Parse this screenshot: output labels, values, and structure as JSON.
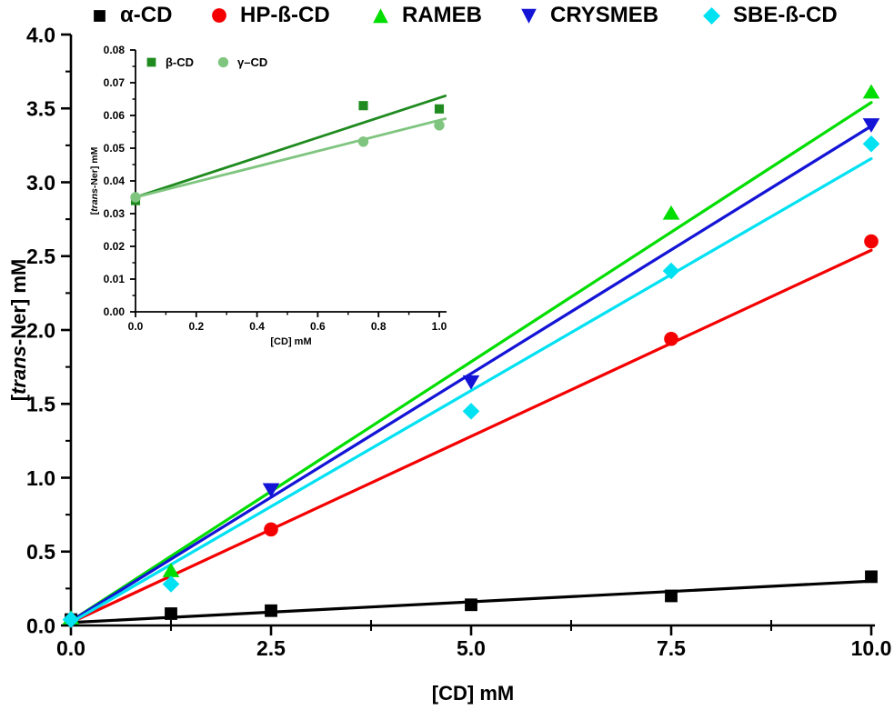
{
  "figure": {
    "background": "#ffffff",
    "axis_color": "#000000",
    "text_color": "#000000"
  },
  "chart_data": [
    {
      "id": "main",
      "type": "scatter",
      "title": "",
      "xlabel": "[CD] mM",
      "ylabel": {
        "pre": "[",
        "italic": "trans",
        "post": "-Ner] mM"
      },
      "xlim": [
        0,
        10
      ],
      "ylim": [
        0,
        4.0
      ],
      "grid": false,
      "legend_position": "top",
      "x_major_ticks": {
        "values": [
          0,
          2.5,
          5,
          7.5,
          10
        ],
        "labels": [
          "0.0",
          "2.5",
          "5.0",
          "7.5",
          "10.0"
        ]
      },
      "x_minor_ticks": [
        1.25,
        3.75,
        6.25,
        8.75
      ],
      "y_major_ticks": {
        "values": [
          0,
          0.5,
          1,
          1.5,
          2,
          2.5,
          3,
          3.5,
          4
        ],
        "labels": [
          "0.0",
          "0.5",
          "1.0",
          "1.5",
          "2.0",
          "2.5",
          "3.0",
          "3.5",
          "4.0"
        ]
      },
      "y_minor_ticks": [
        0.25,
        0.75,
        1.25,
        1.75,
        2.25,
        2.75,
        3.25,
        3.75
      ],
      "series": [
        {
          "name": "α-CD",
          "color": "#000000",
          "marker": "square",
          "points": [
            [
              0,
              0.04
            ],
            [
              1.25,
              0.08
            ],
            [
              2.5,
              0.1
            ],
            [
              5,
              0.14
            ],
            [
              7.5,
              0.2
            ],
            [
              10,
              0.33
            ]
          ],
          "fit_line": {
            "x1": 0,
            "y1": 0.02,
            "x2": 10,
            "y2": 0.3
          }
        },
        {
          "name": "HP-ß-CD",
          "color": "#f40000",
          "marker": "circle",
          "points": [
            [
              2.5,
              0.65
            ],
            [
              7.5,
              1.94
            ],
            [
              10,
              2.6
            ]
          ],
          "fit_line": {
            "x1": 0,
            "y1": 0.02,
            "x2": 10,
            "y2": 2.54
          }
        },
        {
          "name": "RAMEB",
          "color": "#00dd00",
          "marker": "triangle-up",
          "points": [
            [
              0,
              0.05
            ],
            [
              1.25,
              0.37
            ],
            [
              7.5,
              2.79
            ],
            [
              10,
              3.61
            ]
          ],
          "fit_line": {
            "x1": 0,
            "y1": 0.03,
            "x2": 10,
            "y2": 3.54
          }
        },
        {
          "name": "CRYSMEB",
          "color": "#1414d6",
          "marker": "triangle-down",
          "points": [
            [
              2.5,
              0.92
            ],
            [
              5,
              1.65
            ],
            [
              10,
              3.39
            ]
          ],
          "fit_line": {
            "x1": 0,
            "y1": 0.03,
            "x2": 10,
            "y2": 3.38
          }
        },
        {
          "name": "SBE-ß-CD",
          "color": "#00e1f2",
          "marker": "diamond",
          "points": [
            [
              0,
              0.04
            ],
            [
              1.25,
              0.28
            ],
            [
              5,
              1.45
            ],
            [
              7.5,
              2.4
            ],
            [
              10,
              3.26
            ]
          ],
          "fit_line": {
            "x1": 0,
            "y1": 0.02,
            "x2": 10,
            "y2": 3.16
          }
        }
      ]
    },
    {
      "id": "inset",
      "type": "scatter",
      "title": "",
      "xlabel": "[CD] mM",
      "ylabel": {
        "pre": "[",
        "italic": "trans",
        "post": "-Ner] mM"
      },
      "xlim": [
        0,
        1.0
      ],
      "ylim": [
        0,
        0.08
      ],
      "grid": false,
      "legend_position": "top-left",
      "x_major_ticks": {
        "values": [
          0,
          0.2,
          0.4,
          0.6,
          0.8,
          1.0
        ],
        "labels": [
          "0.0",
          "0.2",
          "0.4",
          "0.6",
          "0.8",
          "1.0"
        ]
      },
      "x_minor_ticks": [
        0.1,
        0.3,
        0.5,
        0.7,
        0.9
      ],
      "y_major_ticks": {
        "values": [
          0,
          0.01,
          0.02,
          0.03,
          0.04,
          0.05,
          0.06,
          0.07,
          0.08
        ],
        "labels": [
          "0.00",
          "0.01",
          "0.02",
          "0.03",
          "0.04",
          "0.05",
          "0.06",
          "0.07",
          "0.08"
        ]
      },
      "y_minor_ticks": [
        0.005,
        0.015,
        0.025,
        0.035,
        0.045,
        0.055,
        0.065,
        0.075
      ],
      "series": [
        {
          "name": "β-CD",
          "color": "#1f8b1f",
          "marker": "square",
          "points": [
            [
              0,
              0.034
            ],
            [
              0.75,
              0.063
            ],
            [
              1.0,
              0.062
            ]
          ],
          "fit_line": {
            "x1": 0,
            "y1": 0.035,
            "x2": 1.02,
            "y2": 0.066
          }
        },
        {
          "name": "γ–CD",
          "color": "#7fc57f",
          "marker": "circle",
          "points": [
            [
              0,
              0.035
            ],
            [
              0.75,
              0.052
            ],
            [
              1.0,
              0.057
            ]
          ],
          "fit_line": {
            "x1": 0,
            "y1": 0.035,
            "x2": 1.02,
            "y2": 0.059
          }
        }
      ]
    }
  ]
}
